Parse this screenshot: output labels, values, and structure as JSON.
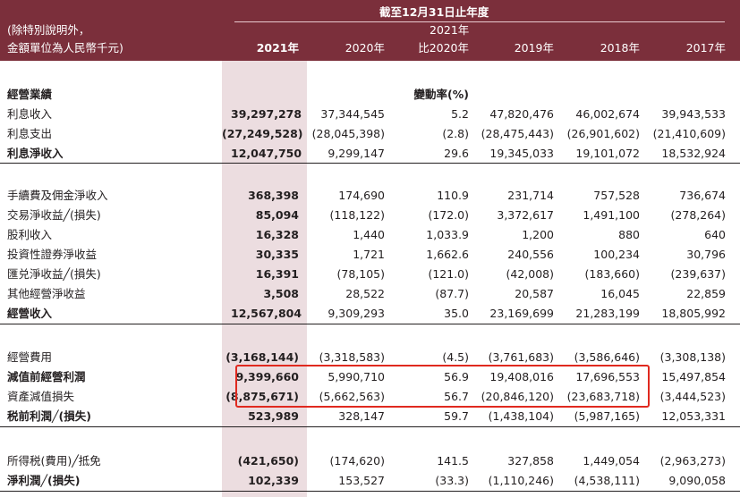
{
  "header": {
    "period_title": "截至12月31日止年度",
    "note_line1": "(除特別說明外，",
    "note_line2": "金額單位為人民幣千元)",
    "change_year": "2021年",
    "columns": [
      "2021年",
      "2020年",
      "比2020年",
      "2019年",
      "2018年",
      "2017年"
    ]
  },
  "section_title": "經營業績",
  "change_label": "變動率(%)",
  "rows": [
    {
      "label": "利息收入",
      "v2021": "39,297,278",
      "v2020": "37,344,545",
      "change": "5.2",
      "v2019": "47,820,476",
      "v2018": "46,002,674",
      "v2017": "39,943,533"
    },
    {
      "label": "利息支出",
      "v2021": "(27,249,528)",
      "v2020": "(28,045,398)",
      "change": "(2.8)",
      "v2019": "(28,475,443)",
      "v2018": "(26,901,602)",
      "v2017": "(21,410,609)"
    },
    {
      "label": "利息淨收入",
      "v2021": "12,047,750",
      "v2020": "9,299,147",
      "change": "29.6",
      "v2019": "19,345,033",
      "v2018": "19,101,072",
      "v2017": "18,532,924"
    },
    {
      "label": "手續費及佣金淨收入",
      "v2021": "368,398",
      "v2020": "174,690",
      "change": "110.9",
      "v2019": "231,714",
      "v2018": "757,528",
      "v2017": "736,674"
    },
    {
      "label": "交易淨收益╱(損失)",
      "v2021": "85,094",
      "v2020": "(118,122)",
      "change": "(172.0)",
      "v2019": "3,372,617",
      "v2018": "1,491,100",
      "v2017": "(278,264)"
    },
    {
      "label": "股利收入",
      "v2021": "16,328",
      "v2020": "1,440",
      "change": "1,033.9",
      "v2019": "1,200",
      "v2018": "880",
      "v2017": "640"
    },
    {
      "label": "投資性證券淨收益",
      "v2021": "30,335",
      "v2020": "1,721",
      "change": "1,662.6",
      "v2019": "240,556",
      "v2018": "100,234",
      "v2017": "30,796"
    },
    {
      "label": "匯兑淨收益╱(損失)",
      "v2021": "16,391",
      "v2020": "(78,105)",
      "change": "(121.0)",
      "v2019": "(42,008)",
      "v2018": "(183,660)",
      "v2017": "(239,637)"
    },
    {
      "label": "其他經營淨收益",
      "v2021": "3,508",
      "v2020": "28,522",
      "change": "(87.7)",
      "v2019": "20,587",
      "v2018": "16,045",
      "v2017": "22,859"
    },
    {
      "label": "經營收入",
      "v2021": "12,567,804",
      "v2020": "9,309,293",
      "change": "35.0",
      "v2019": "23,169,699",
      "v2018": "21,283,199",
      "v2017": "18,805,992"
    },
    {
      "label": "經營費用",
      "v2021": "(3,168,144)",
      "v2020": "(3,318,583)",
      "change": "(4.5)",
      "v2019": "(3,761,683)",
      "v2018": "(3,586,646)",
      "v2017": "(3,308,138)"
    },
    {
      "label": "減值前經營利潤",
      "v2021": "9,399,660",
      "v2020": "5,990,710",
      "change": "56.9",
      "v2019": "19,408,016",
      "v2018": "17,696,553",
      "v2017": "15,497,854"
    },
    {
      "label": "資產減值損失",
      "v2021": "(8,875,671)",
      "v2020": "(5,662,563)",
      "change": "56.7",
      "v2019": "(20,846,120)",
      "v2018": "(23,683,718)",
      "v2017": "(3,444,523)"
    },
    {
      "label": "税前利潤╱(損失)",
      "v2021": "523,989",
      "v2020": "328,147",
      "change": "59.7",
      "v2019": "(1,438,104)",
      "v2018": "(5,987,165)",
      "v2017": "12,053,331"
    },
    {
      "label": "所得税(費用)╱抵免",
      "v2021": "(421,650)",
      "v2020": "(174,620)",
      "change": "141.5",
      "v2019": "327,858",
      "v2018": "1,449,054",
      "v2017": "(2,963,273)"
    },
    {
      "label": "淨利潤╱(損失)",
      "v2021": "102,339",
      "v2020": "153,527",
      "change": "(33.3)",
      "v2019": "(1,110,246)",
      "v2018": "(4,538,111)",
      "v2017": "9,090,058"
    }
  ]
}
